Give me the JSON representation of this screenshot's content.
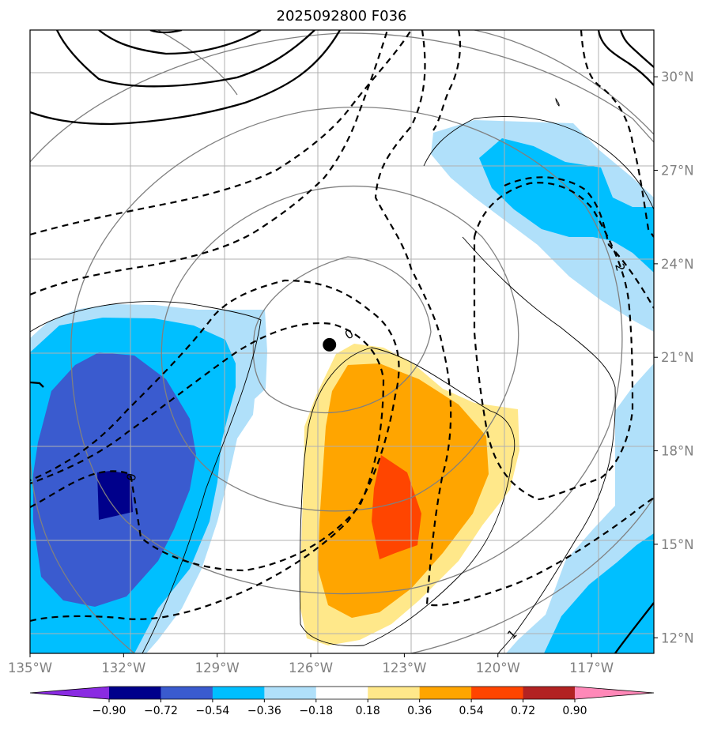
{
  "chart_data": {
    "type": "heatmap",
    "title": "2025092800 F036",
    "x_ticks": [
      "135°W",
      "132°W",
      "129°W",
      "126°W",
      "123°W",
      "120°W",
      "117°W"
    ],
    "x_values": [
      -135,
      -132,
      -129,
      -126,
      -123,
      -120,
      -117
    ],
    "y_ticks": [
      "30°N",
      "27°N",
      "24°N",
      "21°N",
      "18°N",
      "15°N",
      "12°N"
    ],
    "y_values": [
      30,
      27,
      24,
      21,
      18,
      15,
      12
    ],
    "xlim": [
      -135,
      -115
    ],
    "ylim": [
      11.5,
      31.5
    ],
    "grid": true,
    "center_marker": {
      "lon": -125.4,
      "lat": 21.4
    },
    "colorbar": {
      "levels": [
        -0.9,
        -0.72,
        -0.54,
        -0.36,
        -0.18,
        0.18,
        0.36,
        0.54,
        0.72,
        0.9
      ],
      "level_labels": [
        "−0.90",
        "−0.72",
        "−0.54",
        "−0.36",
        "−0.18",
        "0.18",
        "0.36",
        "0.54",
        "0.72",
        "0.90"
      ],
      "colors": [
        "#8a2be2",
        "#00008b",
        "#3a5bcf",
        "#00bfff",
        "#b0e0fa",
        "#ffffff",
        "#ffe88a",
        "#ffa500",
        "#ff4500",
        "#b22222",
        "#ff88b8"
      ],
      "extend": "both"
    },
    "contour_labels": [
      "0",
      "0",
      "2",
      "1"
    ],
    "shaded_regions": [
      {
        "name": "west-negative",
        "bands": [
          -0.18,
          -0.36,
          -0.54,
          -0.72
        ]
      },
      {
        "name": "central-positive",
        "bands": [
          0.18,
          0.36,
          0.54
        ]
      },
      {
        "name": "northeast-negative",
        "bands": [
          -0.18,
          -0.36
        ]
      },
      {
        "name": "southeast-negative",
        "bands": [
          -0.18,
          -0.36
        ]
      }
    ]
  }
}
